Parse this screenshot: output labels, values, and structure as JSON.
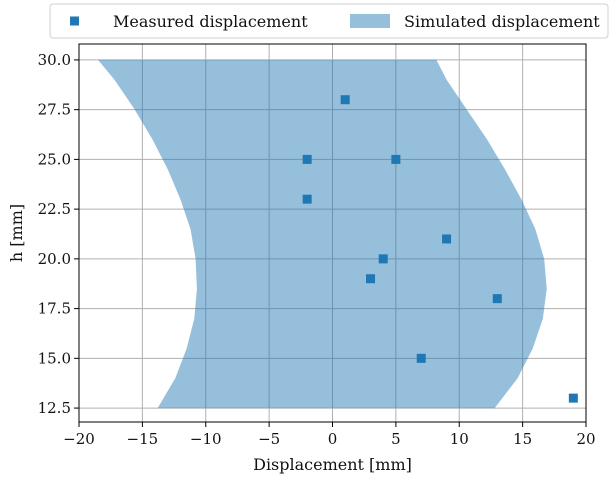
{
  "chart_data": {
    "type": "scatter",
    "xlabel": "Displacement [mm]",
    "ylabel": "h [mm]",
    "xlim": [
      -20,
      20
    ],
    "ylim": [
      11.8,
      30.8
    ],
    "xticks": [
      -20,
      -15,
      -10,
      -5,
      0,
      5,
      10,
      15,
      20
    ],
    "xtick_labels": [
      "−20",
      "−15",
      "−10",
      "−5",
      "0",
      "5",
      "10",
      "15",
      "20"
    ],
    "yticks": [
      12.5,
      15.0,
      17.5,
      20.0,
      22.5,
      25.0,
      27.5,
      30.0
    ],
    "ytick_labels": [
      "12.5",
      "15.0",
      "17.5",
      "20.0",
      "22.5",
      "25.0",
      "27.5",
      "30.0"
    ],
    "grid": true,
    "legend_position": "top-outside",
    "series": [
      {
        "name": "Measured displacement",
        "kind": "scatter",
        "marker": "square",
        "color": "#1f77b4",
        "points": [
          {
            "x": 1,
            "y": 28
          },
          {
            "x": -2,
            "y": 25
          },
          {
            "x": 5,
            "y": 25
          },
          {
            "x": -2,
            "y": 23
          },
          {
            "x": 9,
            "y": 21
          },
          {
            "x": 4,
            "y": 20
          },
          {
            "x": 3,
            "y": 19
          },
          {
            "x": 13,
            "y": 18
          },
          {
            "x": 7,
            "y": 15
          },
          {
            "x": 19,
            "y": 13
          }
        ]
      },
      {
        "name": "Simulated displacement",
        "kind": "band",
        "color": "#1f77b4",
        "opacity": 0.47,
        "h": [
          12.5,
          14.0,
          15.5,
          17.0,
          18.5,
          20.0,
          21.5,
          23.0,
          24.5,
          26.0,
          27.5,
          29.0,
          30.0
        ],
        "lower": [
          -13.8,
          -12.4,
          -11.5,
          -10.9,
          -10.7,
          -10.8,
          -11.2,
          -12.0,
          -13.0,
          -14.2,
          -15.6,
          -17.2,
          -18.5
        ],
        "upper": [
          12.8,
          14.6,
          15.8,
          16.6,
          16.9,
          16.7,
          16.0,
          14.9,
          13.6,
          12.2,
          10.6,
          9.0,
          8.2
        ]
      }
    ]
  }
}
